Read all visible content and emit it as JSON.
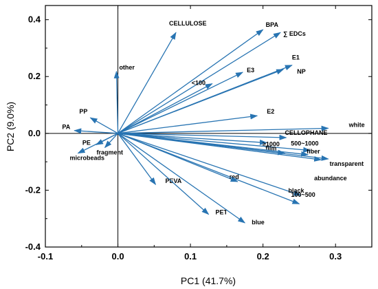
{
  "chart_data": {
    "type": "scatter",
    "subtype": "pca-biplot-loadings",
    "xlabel": "PC1 (41.7%)",
    "ylabel": "PC2 (9.0%)",
    "xlim": [
      -0.1,
      0.35
    ],
    "ylim": [
      -0.4,
      0.45
    ],
    "x_ticks": [
      -0.1,
      0.0,
      0.1,
      0.2,
      0.3
    ],
    "y_ticks": [
      -0.4,
      -0.2,
      0.0,
      0.2,
      0.4
    ],
    "x_tick_labels": [
      "-0.1",
      "0.0",
      "0.1",
      "0.2",
      "0.3"
    ],
    "y_tick_labels": [
      "-0.4",
      "-0.2",
      "0.0",
      "0.2",
      "0.4"
    ],
    "zero_lines": true,
    "grid": false,
    "arrow_color": "#2874b2",
    "vectors": [
      {
        "label": "CELLULOSE",
        "x": 0.08,
        "y": 0.355
      },
      {
        "label": "BPA",
        "x": 0.2,
        "y": 0.365
      },
      {
        "label": "∑ EDCs",
        "x": 0.224,
        "y": 0.355
      },
      {
        "label": "E1",
        "x": 0.24,
        "y": 0.24
      },
      {
        "label": "NP",
        "x": 0.228,
        "y": 0.225
      },
      {
        "label": "<100",
        "x": 0.13,
        "y": 0.175
      },
      {
        "label": "E3",
        "x": 0.172,
        "y": 0.215
      },
      {
        "label": "other",
        "x": -0.002,
        "y": 0.218
      },
      {
        "label": "E2",
        "x": 0.192,
        "y": 0.062
      },
      {
        "label": "PP",
        "x": -0.038,
        "y": 0.055
      },
      {
        "label": "PA",
        "x": -0.06,
        "y": 0.01
      },
      {
        "label": "white",
        "x": 0.29,
        "y": 0.018
      },
      {
        "label": "CELLOPHANE",
        "x": 0.232,
        "y": -0.015
      },
      {
        "label": "≥1000",
        "x": 0.205,
        "y": -0.033
      },
      {
        "label": "500~1000",
        "x": 0.265,
        "y": -0.06
      },
      {
        "label": "film",
        "x": 0.23,
        "y": -0.07
      },
      {
        "label": "fiber",
        "x": 0.262,
        "y": -0.075
      },
      {
        "label": "transparent",
        "x": 0.29,
        "y": -0.09
      },
      {
        "label": "PE",
        "x": -0.03,
        "y": -0.04
      },
      {
        "label": "fragment",
        "x": -0.018,
        "y": -0.05
      },
      {
        "label": "microbeads",
        "x": -0.055,
        "y": -0.07
      },
      {
        "label": "PEVA",
        "x": 0.052,
        "y": -0.18
      },
      {
        "label": "red",
        "x": 0.165,
        "y": -0.17
      },
      {
        "label": "black",
        "x": 0.252,
        "y": -0.218
      },
      {
        "label": "100~500",
        "x": 0.25,
        "y": -0.248
      },
      {
        "label": "PET",
        "x": 0.125,
        "y": -0.285
      },
      {
        "label": "blue",
        "x": 0.175,
        "y": -0.315
      },
      {
        "label": "abundance",
        "x": 0.28,
        "y": -0.093
      }
    ]
  }
}
